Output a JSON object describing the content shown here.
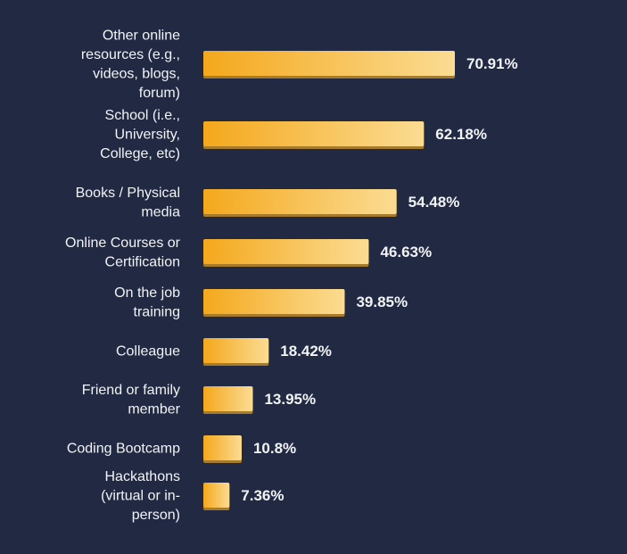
{
  "colors": {
    "background": "#212a42",
    "bar_start": "#f4a81c",
    "bar_end": "#fbdc93",
    "bar_shadow": "#a67c2c",
    "text": "#f2f3f5"
  },
  "chart_data": {
    "type": "bar",
    "orientation": "horizontal",
    "title": "",
    "xlabel": "",
    "ylabel": "",
    "grid": false,
    "categories": [
      "Other online resources (e.g., videos, blogs, forum)",
      "School (i.e., University, College, etc)",
      "Books / Physical media",
      "Online Courses or Certification",
      "On the job training",
      "Colleague",
      "Friend or family member",
      "Coding Bootcamp",
      "Hackathons (virtual or in-person)"
    ],
    "category_lines": [
      [
        "Other online",
        "resources (e.g.,",
        "videos, blogs,",
        "forum)"
      ],
      [
        "School (i.e.,",
        "University,",
        "College, etc)"
      ],
      [
        "Books / Physical",
        "media"
      ],
      [
        "Online Courses or",
        "Certification"
      ],
      [
        "On the job",
        "training"
      ],
      [
        "Colleague"
      ],
      [
        "Friend or family",
        "member"
      ],
      [
        "Coding Bootcamp"
      ],
      [
        "Hackathons",
        "(virtual or in-",
        "person)"
      ]
    ],
    "values": [
      70.91,
      62.18,
      54.48,
      46.63,
      39.85,
      18.42,
      13.95,
      10.8,
      7.36
    ],
    "value_labels": [
      "70.91%",
      "62.18%",
      "54.48%",
      "46.63%",
      "39.85%",
      "18.42%",
      "13.95%",
      "10.8%",
      "7.36%"
    ],
    "xlim": [
      0,
      100
    ]
  }
}
